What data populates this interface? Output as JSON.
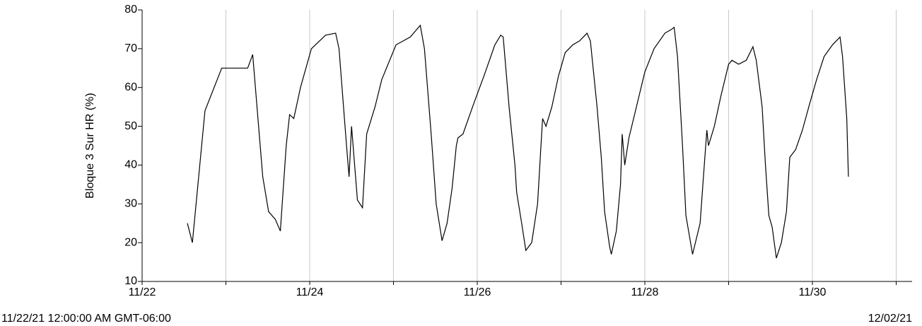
{
  "chart_data": {
    "type": "line",
    "ylabel": "Bloque 3 Sur HR (%)",
    "start_label": "11/22/21 12:00:00 AM GMT-06:00",
    "end_label": "12/02/21",
    "x": [
      0.54,
      0.6,
      0.75,
      0.95,
      1.26,
      1.32,
      1.44,
      1.51,
      1.59,
      1.65,
      1.72,
      1.76,
      1.81,
      1.89,
      2.02,
      2.19,
      2.31,
      2.35,
      2.44,
      2.47,
      2.5,
      2.57,
      2.63,
      2.68,
      2.78,
      2.86,
      3.03,
      3.2,
      3.32,
      3.37,
      3.45,
      3.51,
      3.58,
      3.64,
      3.7,
      3.75,
      3.77,
      3.83,
      3.96,
      4.08,
      4.21,
      4.28,
      4.31,
      4.38,
      4.45,
      4.47,
      4.53,
      4.58,
      4.65,
      4.72,
      4.76,
      4.78,
      4.82,
      4.89,
      4.97,
      5.05,
      5.14,
      5.22,
      5.31,
      5.35,
      5.43,
      5.48,
      5.52,
      5.58,
      5.6,
      5.66,
      5.71,
      5.73,
      5.76,
      5.81,
      5.9,
      6.0,
      6.11,
      6.24,
      6.32,
      6.35,
      6.39,
      6.45,
      6.49,
      6.53,
      6.57,
      6.66,
      6.7,
      6.74,
      6.76,
      6.83,
      6.91,
      7.0,
      7.04,
      7.12,
      7.21,
      7.29,
      7.33,
      7.4,
      7.44,
      7.48,
      7.52,
      7.57,
      7.63,
      7.69,
      7.73,
      7.8,
      7.88,
      7.97,
      8.05,
      8.14,
      8.24,
      8.33,
      8.36,
      8.41,
      8.43
    ],
    "series": [
      {
        "name": "Bloque 3 Sur HR (%)",
        "color": "#000000",
        "values": [
          25,
          20,
          54,
          65,
          65,
          68.5,
          37,
          28,
          26,
          23,
          45,
          53,
          52,
          60,
          70,
          73.5,
          74,
          70,
          45,
          37,
          50,
          31,
          29,
          48,
          55,
          62,
          71,
          73,
          76,
          70,
          48,
          30,
          20.5,
          25,
          34,
          45,
          47,
          48,
          56,
          63,
          71,
          73.5,
          73,
          55,
          40,
          33,
          25,
          18,
          20,
          30,
          45,
          52,
          50,
          55,
          63,
          69,
          71,
          72,
          74,
          72,
          55,
          42,
          28,
          19,
          17,
          23,
          35,
          48,
          40,
          47,
          55,
          64,
          70,
          74,
          75,
          75.5,
          68,
          45,
          27,
          22,
          17,
          25,
          37,
          49,
          45,
          50,
          58,
          66,
          67,
          66,
          67,
          70.5,
          67,
          55,
          40,
          27,
          24,
          16,
          20,
          28,
          42,
          44,
          49,
          56,
          62,
          68,
          71,
          73,
          68,
          52,
          37
        ]
      }
    ],
    "xlim": [
      0,
      9.19
    ],
    "xticks": [
      {
        "value": 0,
        "label": "11/22"
      },
      {
        "value": 2,
        "label": "11/24"
      },
      {
        "value": 4,
        "label": "11/26"
      },
      {
        "value": 6,
        "label": "11/28"
      },
      {
        "value": 8,
        "label": "11/30"
      }
    ],
    "xminorticks": [
      1,
      3,
      5,
      7,
      9
    ],
    "ylim": [
      10,
      80
    ],
    "yticks": [
      10,
      20,
      30,
      40,
      50,
      60,
      70,
      80
    ],
    "grid": true
  }
}
